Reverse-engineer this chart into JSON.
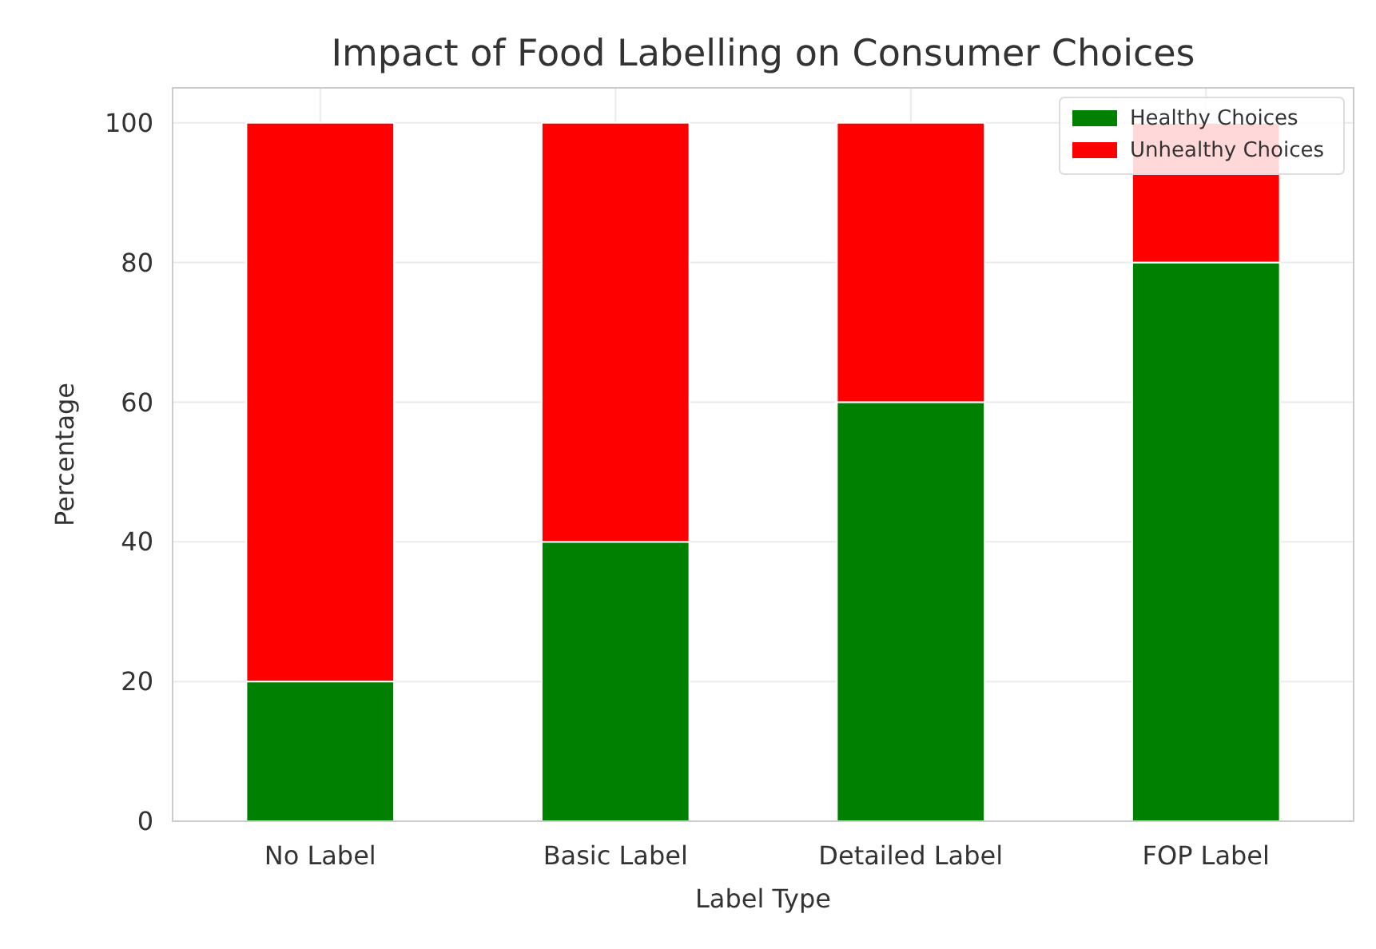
{
  "chart_data": {
    "type": "bar",
    "title": "Impact of Food Labelling on Consumer Choices",
    "xlabel": "Label Type",
    "ylabel": "Percentage",
    "categories": [
      "No Label",
      "Basic Label",
      "Detailed Label",
      "FOP Label"
    ],
    "stacked": true,
    "series": [
      {
        "name": "Healthy Choices",
        "color": "#008000",
        "values": [
          20,
          40,
          60,
          80
        ]
      },
      {
        "name": "Unhealthy Choices",
        "color": "#ff0000",
        "values": [
          80,
          60,
          40,
          20
        ]
      }
    ],
    "ylim": [
      0,
      105
    ],
    "yticks": [
      0,
      20,
      40,
      60,
      80,
      100
    ],
    "grid": true,
    "legend": "top right"
  }
}
